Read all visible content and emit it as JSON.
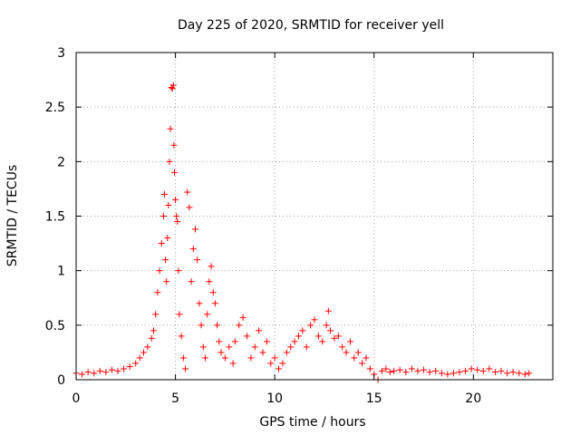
{
  "chart_data": {
    "type": "scatter",
    "title": "Day 225 of 2020, SRMTID for receiver yell",
    "xlabel": "GPS time / hours",
    "ylabel": "SRMTID / TECUs",
    "xlim": [
      0,
      24
    ],
    "ylim": [
      0,
      3
    ],
    "xticks": [
      0,
      5,
      10,
      15,
      20
    ],
    "xtick_labels": [
      "0",
      "5",
      "10",
      "15",
      "20"
    ],
    "yticks": [
      0,
      0.5,
      1,
      1.5,
      2,
      2.5,
      3
    ],
    "ytick_labels": [
      "0",
      "0.5",
      "1",
      "1.5",
      "2",
      "2.5",
      "3"
    ],
    "grid": true,
    "marker": "+",
    "series": [
      {
        "name": "SRMTID",
        "color": "#ff0000",
        "x": [
          0.0,
          0.3,
          0.6,
          0.9,
          1.2,
          1.5,
          1.8,
          2.1,
          2.4,
          2.7,
          3.0,
          3.2,
          3.4,
          3.6,
          3.8,
          3.9,
          4.0,
          4.1,
          4.2,
          4.3,
          4.4,
          4.45,
          4.5,
          4.55,
          4.6,
          4.65,
          4.7,
          4.75,
          4.8,
          4.85,
          4.9,
          4.92,
          4.95,
          5.0,
          5.05,
          5.1,
          5.15,
          5.2,
          5.3,
          5.4,
          5.5,
          5.6,
          5.7,
          5.8,
          5.9,
          6.0,
          6.1,
          6.2,
          6.3,
          6.4,
          6.5,
          6.6,
          6.7,
          6.8,
          6.9,
          7.0,
          7.1,
          7.2,
          7.3,
          7.5,
          7.7,
          7.9,
          8.0,
          8.2,
          8.4,
          8.6,
          8.8,
          9.0,
          9.2,
          9.4,
          9.6,
          9.8,
          10.0,
          10.2,
          10.4,
          10.6,
          10.8,
          11.0,
          11.2,
          11.4,
          11.6,
          11.8,
          12.0,
          12.2,
          12.4,
          12.6,
          12.7,
          12.8,
          13.0,
          13.2,
          13.4,
          13.6,
          13.8,
          14.0,
          14.2,
          14.4,
          14.6,
          14.8,
          15.0,
          15.2,
          15.4,
          15.6,
          15.8,
          16.0,
          16.3,
          16.6,
          16.9,
          17.2,
          17.5,
          17.8,
          18.1,
          18.4,
          18.7,
          19.0,
          19.3,
          19.6,
          19.9,
          20.2,
          20.5,
          20.8,
          21.1,
          21.4,
          21.7,
          22.0,
          22.3,
          22.6,
          22.8
        ],
        "y": [
          0.06,
          0.05,
          0.07,
          0.06,
          0.08,
          0.07,
          0.09,
          0.08,
          0.1,
          0.12,
          0.15,
          0.2,
          0.25,
          0.3,
          0.38,
          0.45,
          0.6,
          0.8,
          1.0,
          1.25,
          1.5,
          1.7,
          1.1,
          0.9,
          1.3,
          1.6,
          2.0,
          2.3,
          2.68,
          2.67,
          2.7,
          2.15,
          1.9,
          1.65,
          1.5,
          1.45,
          1.0,
          0.6,
          0.4,
          0.2,
          0.1,
          1.72,
          1.58,
          0.9,
          1.2,
          1.38,
          1.1,
          0.7,
          0.5,
          0.3,
          0.2,
          0.6,
          0.9,
          1.04,
          0.8,
          0.7,
          0.5,
          0.35,
          0.25,
          0.2,
          0.3,
          0.15,
          0.35,
          0.5,
          0.57,
          0.4,
          0.2,
          0.3,
          0.45,
          0.25,
          0.35,
          0.15,
          0.2,
          0.1,
          0.15,
          0.25,
          0.3,
          0.35,
          0.4,
          0.45,
          0.3,
          0.5,
          0.55,
          0.4,
          0.35,
          0.5,
          0.63,
          0.45,
          0.38,
          0.4,
          0.3,
          0.25,
          0.35,
          0.2,
          0.25,
          0.15,
          0.2,
          0.1,
          0.05,
          0.0,
          0.08,
          0.1,
          0.07,
          0.08,
          0.09,
          0.07,
          0.1,
          0.08,
          0.09,
          0.07,
          0.08,
          0.06,
          0.05,
          0.06,
          0.07,
          0.08,
          0.1,
          0.09,
          0.08,
          0.1,
          0.07,
          0.08,
          0.06,
          0.07,
          0.06,
          0.05,
          0.06
        ]
      }
    ]
  }
}
